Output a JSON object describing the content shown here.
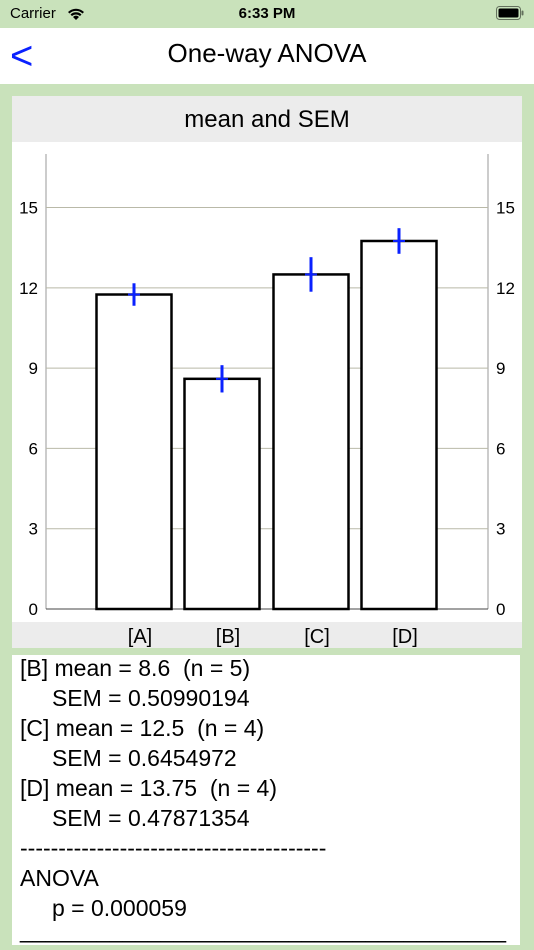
{
  "status_bar": {
    "carrier": "Carrier",
    "time": "6:33 PM"
  },
  "nav": {
    "back_label": "<",
    "title": "One-way ANOVA"
  },
  "chart_data": {
    "type": "bar",
    "title": "mean and SEM",
    "categories": [
      "[A]",
      "[B]",
      "[C]",
      "[D]"
    ],
    "values": [
      11.75,
      8.6,
      12.5,
      13.75
    ],
    "error_sem": [
      0.42,
      0.50990194,
      0.6454972,
      0.47871354
    ],
    "ylim": [
      0,
      17
    ],
    "yticks": [
      0,
      3,
      6,
      9,
      12,
      15
    ],
    "ytick_labels": [
      "0",
      "3",
      "6",
      "9",
      "12",
      "15"
    ],
    "grid": true,
    "colors": {
      "bar_fill": "#ffffff",
      "bar_stroke": "#000000",
      "error_bar": "#0a21ff",
      "grid": "#b9b9a8"
    }
  },
  "results": {
    "lines": [
      "[B] mean = 8.6  (n = 5)",
      "     SEM = 0.50990194",
      "[C] mean = 12.5  (n = 4)",
      "     SEM = 0.6454972",
      "[D] mean = 13.75  (n = 4)",
      "     SEM = 0.47871354",
      "----------------------------------------",
      "ANOVA",
      "     p = 0.000059",
      "______________________________________"
    ]
  }
}
